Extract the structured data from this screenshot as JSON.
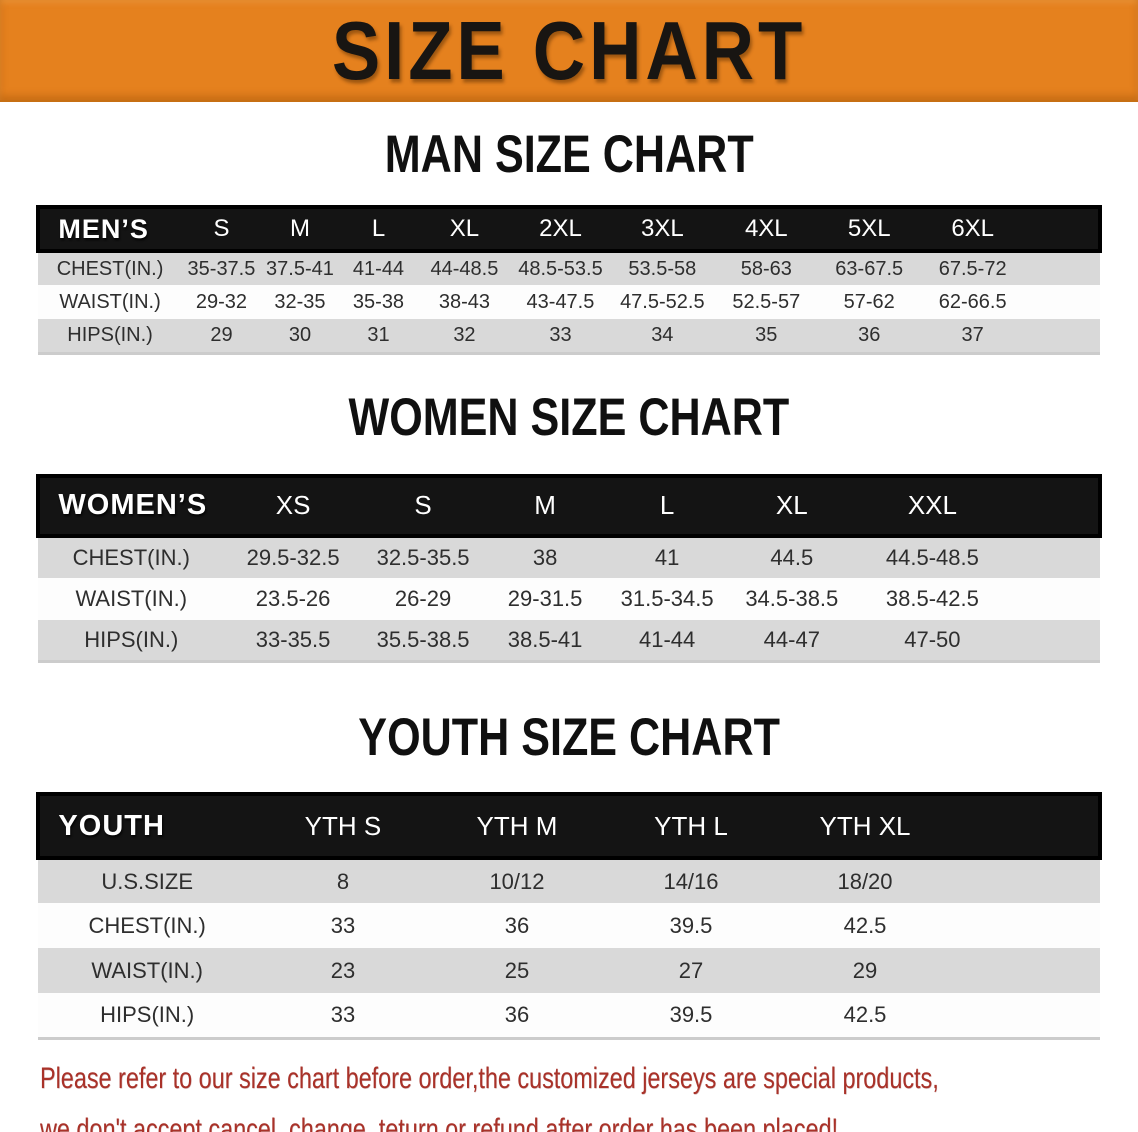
{
  "banner": {
    "title": "SIZE CHART",
    "bg_color": "#e5811e",
    "text_color": "#181512"
  },
  "sections": [
    {
      "title": "MAN SIZE CHART",
      "header_label": "MEN’S",
      "columns": [
        "S",
        "M",
        "L",
        "XL",
        "2XL",
        "3XL",
        "4XL",
        "5XL",
        "6XL"
      ],
      "rows": [
        {
          "label": "CHEST(IN.)",
          "values": [
            "35-37.5",
            "37.5-41",
            "41-44",
            "44-48.5",
            "48.5-53.5",
            "53.5-58",
            "58-63",
            "63-67.5",
            "67.5-72"
          ]
        },
        {
          "label": "WAIST(IN.)",
          "values": [
            "29-32",
            "32-35",
            "35-38",
            "38-43",
            "43-47.5",
            "47.5-52.5",
            "52.5-57",
            "57-62",
            "62-66.5"
          ]
        },
        {
          "label": "HIPS(IN.)",
          "values": [
            "29",
            "30",
            "31",
            "32",
            "33",
            "34",
            "35",
            "36",
            "37"
          ]
        }
      ]
    },
    {
      "title": "WOMEN SIZE CHART",
      "header_label": "WOMEN’S",
      "columns": [
        "XS",
        "S",
        "M",
        "L",
        "XL",
        "XXL"
      ],
      "rows": [
        {
          "label": "CHEST(IN.)",
          "values": [
            "29.5-32.5",
            "32.5-35.5",
            "38",
            "41",
            "44.5",
            "44.5-48.5"
          ]
        },
        {
          "label": "WAIST(IN.)",
          "values": [
            "23.5-26",
            "26-29",
            "29-31.5",
            "31.5-34.5",
            "34.5-38.5",
            "38.5-42.5"
          ]
        },
        {
          "label": "HIPS(IN.)",
          "values": [
            "33-35.5",
            "35.5-38.5",
            "38.5-41",
            "41-44",
            "44-47",
            "47-50"
          ]
        }
      ]
    },
    {
      "title": "YOUTH SIZE CHART",
      "header_label": "YOUTH",
      "columns": [
        "YTH S",
        "YTH M",
        "YTH L",
        "YTH XL"
      ],
      "rows": [
        {
          "label": "U.S.SIZE",
          "values": [
            "8",
            "10/12",
            "14/16",
            "18/20"
          ]
        },
        {
          "label": "CHEST(IN.)",
          "values": [
            "33",
            "36",
            "39.5",
            "42.5"
          ]
        },
        {
          "label": "WAIST(IN.)",
          "values": [
            "23",
            "25",
            "27",
            "29"
          ]
        },
        {
          "label": "HIPS(IN.)",
          "values": [
            "33",
            "36",
            "39.5",
            "42.5"
          ]
        }
      ]
    }
  ],
  "footer": {
    "line1": "Please refer to our size chart before order,the customized jerseys are special products,",
    "line2": "we don't accept cancel, change, teturn or refund after order has been placed!",
    "text_color": "#a93229"
  },
  "colors": {
    "banner_orange": "#e5811e",
    "header_bar_black": "#141414",
    "row_gray": "#d9d9d9",
    "row_white": "#fdfdfd",
    "footer_red": "#a93229"
  }
}
